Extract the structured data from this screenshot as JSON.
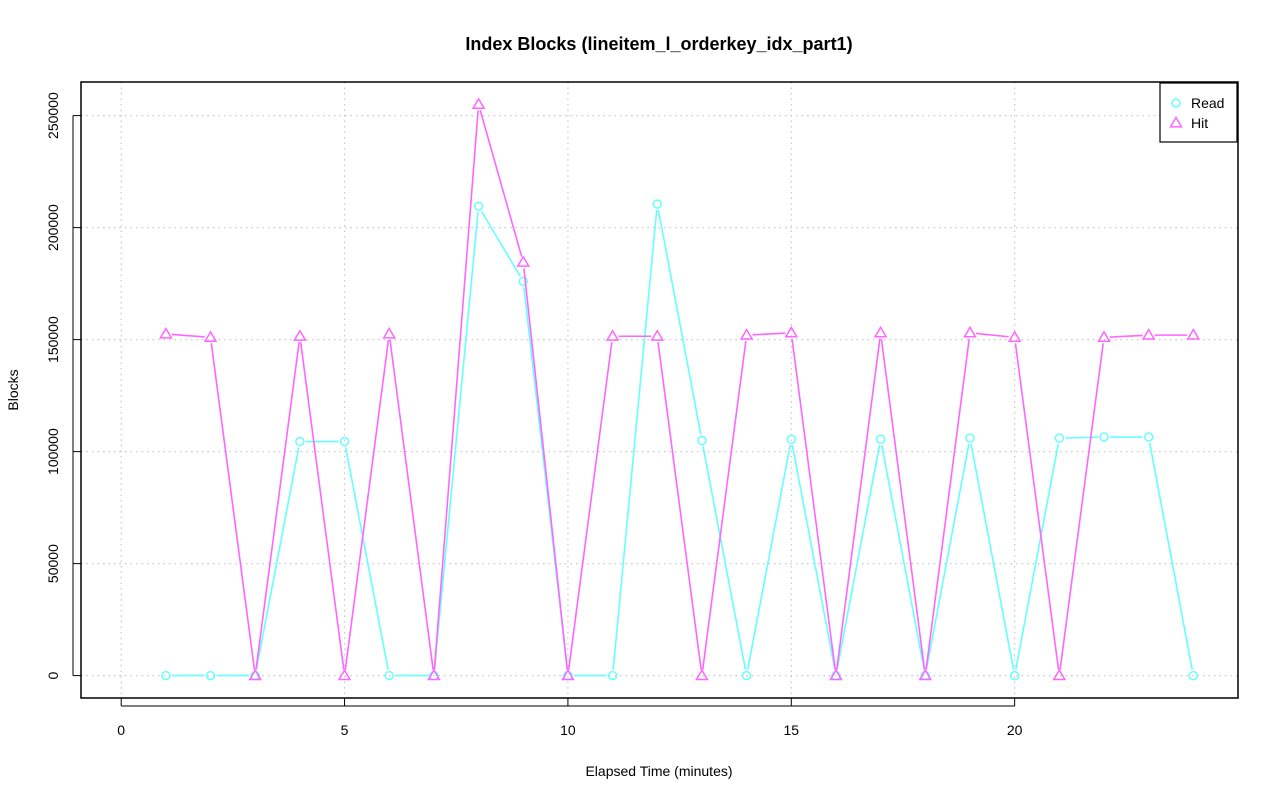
{
  "chart_data": {
    "type": "line",
    "title": "Index Blocks (lineitem_l_orderkey_idx_part1)",
    "xlabel": "Elapsed Time (minutes)",
    "ylabel": "Blocks",
    "xlim": [
      -0.9,
      25.0
    ],
    "ylim": [
      -10000,
      265000
    ],
    "x_ticks": [
      0,
      5,
      10,
      15,
      20
    ],
    "y_ticks": [
      0,
      50000,
      100000,
      150000,
      200000,
      250000
    ],
    "grid": true,
    "legend_position": "top-right",
    "x": [
      1,
      2,
      3,
      4,
      5,
      6,
      7,
      8,
      9,
      10,
      11,
      12,
      13,
      14,
      15,
      16,
      17,
      18,
      19,
      20,
      21,
      22,
      23,
      24
    ],
    "series": [
      {
        "name": "Read",
        "color": "#66ffff",
        "marker": "circle",
        "values": [
          0,
          0,
          0,
          104500,
          104500,
          0,
          0,
          209500,
          176000,
          0,
          0,
          210500,
          105000,
          0,
          105500,
          0,
          105500,
          0,
          106000,
          0,
          106000,
          106500,
          106500,
          0
        ]
      },
      {
        "name": "Hit",
        "color": "#ff66ff",
        "marker": "triangle",
        "values": [
          152500,
          151000,
          0,
          151500,
          0,
          152500,
          0,
          255000,
          184500,
          0,
          151500,
          151500,
          0,
          152000,
          153000,
          0,
          153000,
          0,
          153000,
          151000,
          0,
          151000,
          152000,
          152000
        ]
      }
    ]
  }
}
